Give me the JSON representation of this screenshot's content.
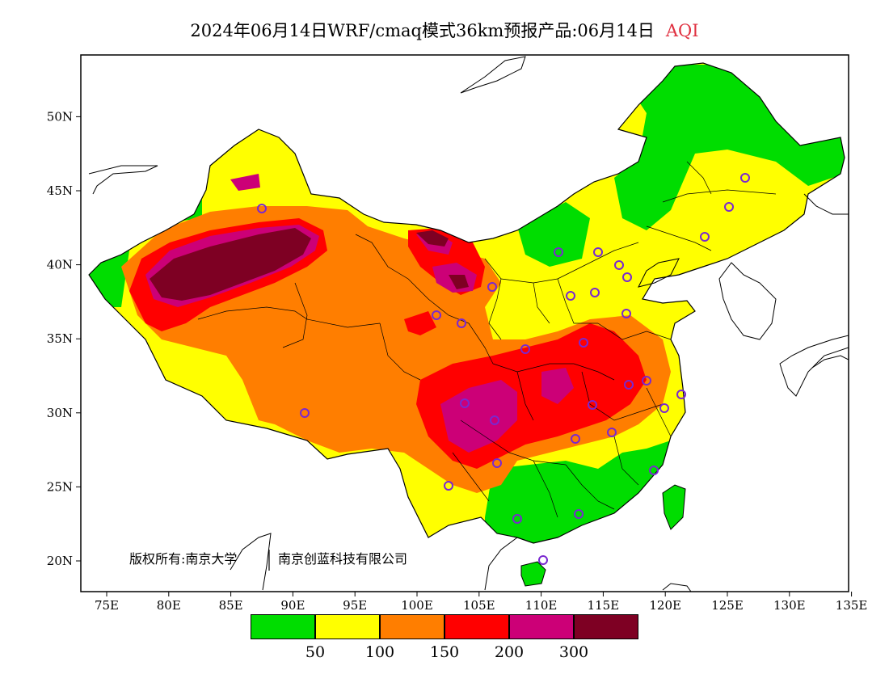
{
  "title": {
    "main": "2024年06月14日WRF/cmaq模式36km预报产品:06月14日",
    "variable": "AQI"
  },
  "axes": {
    "lon_labels": [
      "75E",
      "80E",
      "85E",
      "90E",
      "95E",
      "100E",
      "105E",
      "110E",
      "115E",
      "120E",
      "125E",
      "130E",
      "135E"
    ],
    "lat_labels": [
      "20N",
      "25N",
      "30N",
      "35N",
      "40N",
      "45N",
      "50N"
    ]
  },
  "copyright": {
    "left": "版权所有:南京大学",
    "right": "南京创蓝科技有限公司"
  },
  "legend": {
    "colors": [
      "#00dd00",
      "#ffff00",
      "#ff7e00",
      "#ff0000",
      "#cc0077",
      "#7e0023"
    ],
    "labels": [
      "50",
      "100",
      "150",
      "200",
      "300"
    ]
  }
}
